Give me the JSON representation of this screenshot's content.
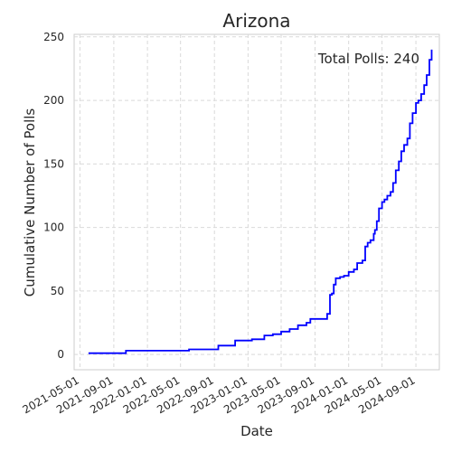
{
  "chart_data": {
    "type": "line",
    "title": "Arizona",
    "xlabel": "Date",
    "ylabel": "Cumulative Number of Polls",
    "annotation": "Total Polls: 240",
    "grid": true,
    "line_color": "#0000ff",
    "xlim": [
      "2021-04-10",
      "2024-11-25"
    ],
    "ylim": [
      -12,
      252
    ],
    "x_ticks": [
      "2021-05-01",
      "2021-09-01",
      "2022-01-01",
      "2022-05-01",
      "2022-09-01",
      "2023-01-01",
      "2023-05-01",
      "2023-09-01",
      "2024-01-01",
      "2024-05-01",
      "2024-09-01"
    ],
    "y_ticks": [
      0,
      50,
      100,
      150,
      200,
      250
    ],
    "series": [
      {
        "x": [
          "2021-06-01",
          "2021-10-15",
          "2022-06-01",
          "2022-09-15",
          "2022-11-15",
          "2023-01-15",
          "2023-03-01",
          "2023-04-01",
          "2023-05-01",
          "2023-06-01",
          "2023-07-01",
          "2023-08-01",
          "2023-08-15",
          "2023-09-15",
          "2023-10-15",
          "2023-10-25",
          "2023-11-01",
          "2023-11-08",
          "2023-11-15",
          "2023-12-01",
          "2023-12-15",
          "2024-01-01",
          "2024-01-20",
          "2024-02-01",
          "2024-02-20",
          "2024-03-01",
          "2024-03-10",
          "2024-03-20",
          "2024-04-01",
          "2024-04-05",
          "2024-04-12",
          "2024-04-20",
          "2024-05-01",
          "2024-05-10",
          "2024-05-20",
          "2024-06-01",
          "2024-06-10",
          "2024-06-20",
          "2024-07-01",
          "2024-07-10",
          "2024-07-20",
          "2024-08-01",
          "2024-08-10",
          "2024-08-20",
          "2024-09-01",
          "2024-09-10",
          "2024-09-20",
          "2024-10-01",
          "2024-10-10",
          "2024-10-20",
          "2024-10-28"
        ],
        "y": [
          1,
          3,
          4,
          7,
          11,
          12,
          15,
          16,
          18,
          20,
          23,
          25,
          28,
          28,
          32,
          47,
          48,
          55,
          60,
          61,
          62,
          65,
          67,
          72,
          74,
          85,
          88,
          90,
          95,
          98,
          105,
          115,
          120,
          122,
          125,
          128,
          135,
          145,
          152,
          160,
          165,
          170,
          182,
          190,
          198,
          200,
          205,
          212,
          220,
          232,
          240
        ]
      }
    ]
  }
}
